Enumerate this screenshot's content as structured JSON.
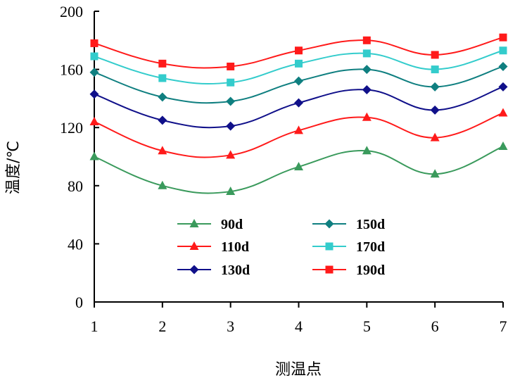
{
  "chart_data": {
    "type": "line",
    "title": "",
    "xlabel": "测温点",
    "ylabel": "温度/℃",
    "x": [
      1,
      2,
      3,
      4,
      5,
      6,
      7
    ],
    "xlim": [
      1,
      7
    ],
    "ylim": [
      0,
      200
    ],
    "yticks": [
      0,
      40,
      80,
      120,
      160,
      200
    ],
    "xticks": [
      1,
      2,
      3,
      4,
      5,
      6,
      7
    ],
    "grid": false,
    "legend_position": "bottom-center",
    "series": [
      {
        "name": "90d",
        "color": "#3a9a5c",
        "marker": "triangle",
        "values": [
          100,
          80,
          76,
          93,
          104,
          88,
          107
        ]
      },
      {
        "name": "110d",
        "color": "#ff1a1a",
        "marker": "triangle",
        "values": [
          124,
          104,
          101,
          118,
          127,
          113,
          130
        ]
      },
      {
        "name": "130d",
        "color": "#10108a",
        "marker": "diamond",
        "values": [
          143,
          125,
          121,
          137,
          146,
          132,
          148
        ]
      },
      {
        "name": "150d",
        "color": "#0f7f80",
        "marker": "diamond",
        "values": [
          158,
          141,
          138,
          152,
          160,
          148,
          162
        ]
      },
      {
        "name": "170d",
        "color": "#33cccc",
        "marker": "square",
        "values": [
          169,
          154,
          151,
          164,
          171,
          160,
          173
        ]
      },
      {
        "name": "190d",
        "color": "#ff1a1a",
        "marker": "square",
        "values": [
          178,
          164,
          162,
          173,
          180,
          170,
          182
        ]
      }
    ]
  }
}
